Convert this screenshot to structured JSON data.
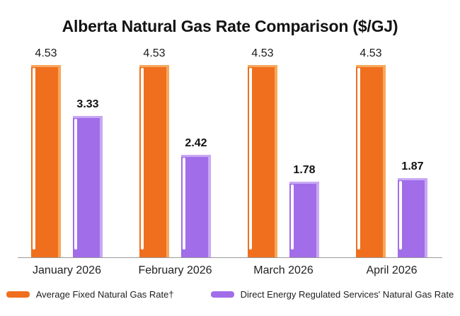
{
  "title": "Alberta Natural Gas Rate Comparison ($/GJ)",
  "chart_data": {
    "type": "bar",
    "title": "Alberta Natural Gas Rate Comparison ($/GJ)",
    "categories": [
      "January 2026",
      "February 2026",
      "March 2026",
      "April 2026"
    ],
    "series": [
      {
        "name": "Average Fixed Natural Gas Rate†",
        "key": "average-fixed-rate",
        "color": "#EF6F1E",
        "tint": "#F7A75D",
        "values": [
          4.53,
          4.53,
          4.53,
          4.53
        ],
        "value_label_weight": "regular"
      },
      {
        "name": "Direct Energy Regulated Services' Natural Gas Rate",
        "key": "regulated-services-rate",
        "color": "#A16DE9",
        "tint": "#C8A8F4",
        "values": [
          3.33,
          2.42,
          1.78,
          1.87
        ],
        "value_label_weight": "bold"
      }
    ],
    "xlabel": "",
    "ylabel": "",
    "ylim": [
      0,
      4.53
    ],
    "value_labels": true,
    "grid": false,
    "legend_position": "bottom",
    "axis_color": "#9A9A9A",
    "background": "#FFFFFF"
  }
}
